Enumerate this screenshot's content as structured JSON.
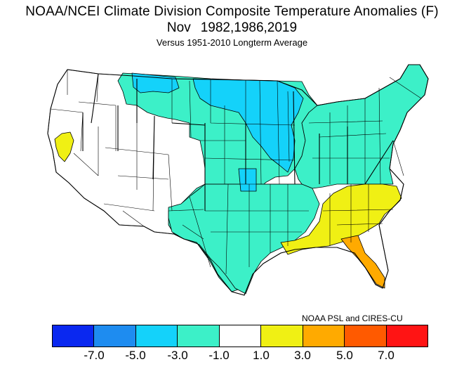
{
  "title": {
    "line1": "NOAA/NCEI Climate Division Composite Temperature Anomalies (F)",
    "month": "Nov",
    "years": "1982,1986,2019",
    "subtitle": "Versus 1951-2010 Longterm Average"
  },
  "credit": "NOAA PSL and CIRES-CU",
  "legend": {
    "bins": [
      {
        "range": "< -7.0",
        "color": "#0a28f0"
      },
      {
        "range": "-7.0 to -5.0",
        "color": "#1e8cf0"
      },
      {
        "range": "-5.0 to -3.0",
        "color": "#14d2fa"
      },
      {
        "range": "-3.0 to -1.0",
        "color": "#3cf0c8"
      },
      {
        "range": "-1.0 to 1.0",
        "color": "#ffffff"
      },
      {
        "range": "1.0 to 3.0",
        "color": "#f0f014"
      },
      {
        "range": "3.0 to 5.0",
        "color": "#ffaa00"
      },
      {
        "range": "5.0 to 7.0",
        "color": "#ff5a00"
      },
      {
        "range": "> 7.0",
        "color": "#ff1414"
      }
    ],
    "ticks": [
      "-7.0",
      "-5.0",
      "-3.0",
      "-1.0",
      "1.0",
      "3.0",
      "5.0",
      "7.0"
    ]
  },
  "regions": [
    {
      "area": "Western US",
      "anomaly_bin": "-1.0 to 1.0",
      "color": "#ffffff"
    },
    {
      "area": "Northern California",
      "anomaly_bin": "1.0 to 3.0",
      "color": "#f0f014"
    },
    {
      "area": "Northern Plains and Rockies",
      "anomaly_bin": "-3.0 to -1.0",
      "color": "#3cf0c8"
    },
    {
      "area": "Northern Montana and North Dakota",
      "anomaly_bin": "-5.0 to -3.0",
      "color": "#14d2fa"
    },
    {
      "area": "Upper Midwest",
      "anomaly_bin": "-5.0 to -3.0",
      "color": "#14d2fa"
    },
    {
      "area": "Kansas",
      "anomaly_bin": "-5.0 to -3.0",
      "color": "#14d2fa"
    },
    {
      "area": "Southern Plains",
      "anomaly_bin": "-3.0 to -1.0",
      "color": "#3cf0c8"
    },
    {
      "area": "Ohio Valley and Northeast",
      "anomaly_bin": "-3.0 to -1.0",
      "color": "#3cf0c8"
    },
    {
      "area": "Southeast",
      "anomaly_bin": "1.0 to 3.0",
      "color": "#f0f014"
    },
    {
      "area": "Florida",
      "anomaly_bin": "3.0 to 5.0",
      "color": "#ffaa00"
    }
  ]
}
